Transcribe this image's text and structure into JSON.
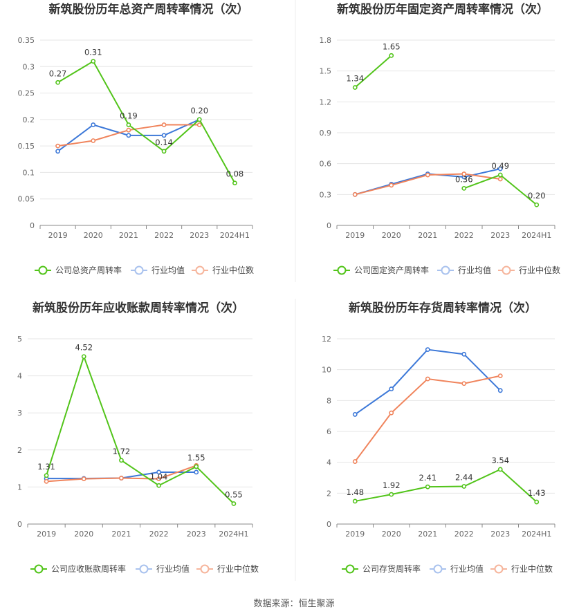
{
  "legend_labels": {
    "industry_avg": "行业均值",
    "industry_median": "行业中位数"
  },
  "colors": {
    "company": "#52c41a",
    "industry_avg": "#3c78d8",
    "industry_median": "#f0845c",
    "grid": "#e6e6e6",
    "axis": "#666666",
    "title": "#333333"
  },
  "source": "数据来源：恒生聚源",
  "chart_data": [
    {
      "type": "line",
      "title": "新筑股份历年总资产周转率情况（次）",
      "categories": [
        "2019",
        "2020",
        "2021",
        "2022",
        "2023",
        "2024H1"
      ],
      "ylim": [
        0,
        0.35
      ],
      "yticks": [
        "0",
        "0.05",
        "0.1",
        "0.15",
        "0.2",
        "0.25",
        "0.3",
        "0.35"
      ],
      "legend_position": "bottom",
      "grid": true,
      "series": [
        {
          "name": "公司总资产周转率",
          "key": "company",
          "values": [
            0.27,
            0.31,
            0.19,
            0.14,
            0.2,
            0.08
          ],
          "labels": [
            "0.27",
            "0.31",
            "0.19",
            "0.14",
            "0.20",
            "0.08"
          ]
        },
        {
          "name": "行业均值",
          "key": "industry_avg",
          "values": [
            0.14,
            0.19,
            0.17,
            0.17,
            0.2,
            null
          ]
        },
        {
          "name": "行业中位数",
          "key": "industry_median",
          "values": [
            0.15,
            0.16,
            0.18,
            0.19,
            0.19,
            null
          ]
        }
      ]
    },
    {
      "type": "line",
      "title": "新筑股份历年固定资产周转率情况（次）",
      "categories": [
        "2019",
        "2020",
        "2021",
        "2022",
        "2023",
        "2024H1"
      ],
      "ylim": [
        0,
        1.8
      ],
      "yticks": [
        "0",
        "0.3",
        "0.6",
        "0.9",
        "1.2",
        "1.5",
        "1.8"
      ],
      "legend_position": "bottom",
      "grid": true,
      "series": [
        {
          "name": "公司固定资产周转率",
          "key": "company",
          "values": [
            1.34,
            1.65,
            null,
            0.36,
            0.49,
            0.2
          ],
          "labels": [
            "1.34",
            "1.65",
            "",
            "0.36",
            "0.49",
            "0.20"
          ]
        },
        {
          "name": "行业均值",
          "key": "industry_avg",
          "values": [
            0.3,
            0.4,
            0.5,
            0.47,
            0.55,
            null
          ]
        },
        {
          "name": "行业中位数",
          "key": "industry_median",
          "values": [
            0.3,
            0.39,
            0.49,
            0.5,
            0.45,
            null
          ]
        }
      ]
    },
    {
      "type": "line",
      "title": "新筑股份历年应收账款周转率情况（次）",
      "categories": [
        "2019",
        "2020",
        "2021",
        "2022",
        "2023",
        "2024H1"
      ],
      "ylim": [
        0,
        5
      ],
      "yticks": [
        "0",
        "1",
        "2",
        "3",
        "4",
        "5"
      ],
      "legend_position": "bottom",
      "grid": true,
      "series": [
        {
          "name": "公司应收账款周转率",
          "key": "company",
          "values": [
            1.31,
            4.52,
            1.72,
            1.04,
            1.55,
            0.55
          ],
          "labels": [
            "1.31",
            "4.52",
            "1.72",
            "1.04",
            "1.55",
            "0.55"
          ]
        },
        {
          "name": "行业均值",
          "key": "industry_avg",
          "values": [
            1.23,
            1.23,
            1.24,
            1.4,
            1.4,
            null
          ]
        },
        {
          "name": "行业中位数",
          "key": "industry_median",
          "values": [
            1.15,
            1.22,
            1.24,
            1.22,
            1.58,
            null
          ]
        }
      ]
    },
    {
      "type": "line",
      "title": "新筑股份历年存货周转率情况（次）",
      "categories": [
        "2019",
        "2020",
        "2021",
        "2022",
        "2023",
        "2024H1"
      ],
      "ylim": [
        0,
        12
      ],
      "yticks": [
        "0",
        "2",
        "4",
        "6",
        "8",
        "10",
        "12"
      ],
      "legend_position": "bottom",
      "grid": true,
      "series": [
        {
          "name": "公司存货周转率",
          "key": "company",
          "values": [
            1.48,
            1.92,
            2.41,
            2.44,
            3.54,
            1.43
          ],
          "labels": [
            "1.48",
            "1.92",
            "2.41",
            "2.44",
            "3.54",
            "1.43"
          ]
        },
        {
          "name": "行业均值",
          "key": "industry_avg",
          "values": [
            7.1,
            8.75,
            11.3,
            11.0,
            8.65,
            null
          ]
        },
        {
          "name": "行业中位数",
          "key": "industry_median",
          "values": [
            4.05,
            7.2,
            9.4,
            9.1,
            9.6,
            null
          ]
        }
      ]
    }
  ]
}
